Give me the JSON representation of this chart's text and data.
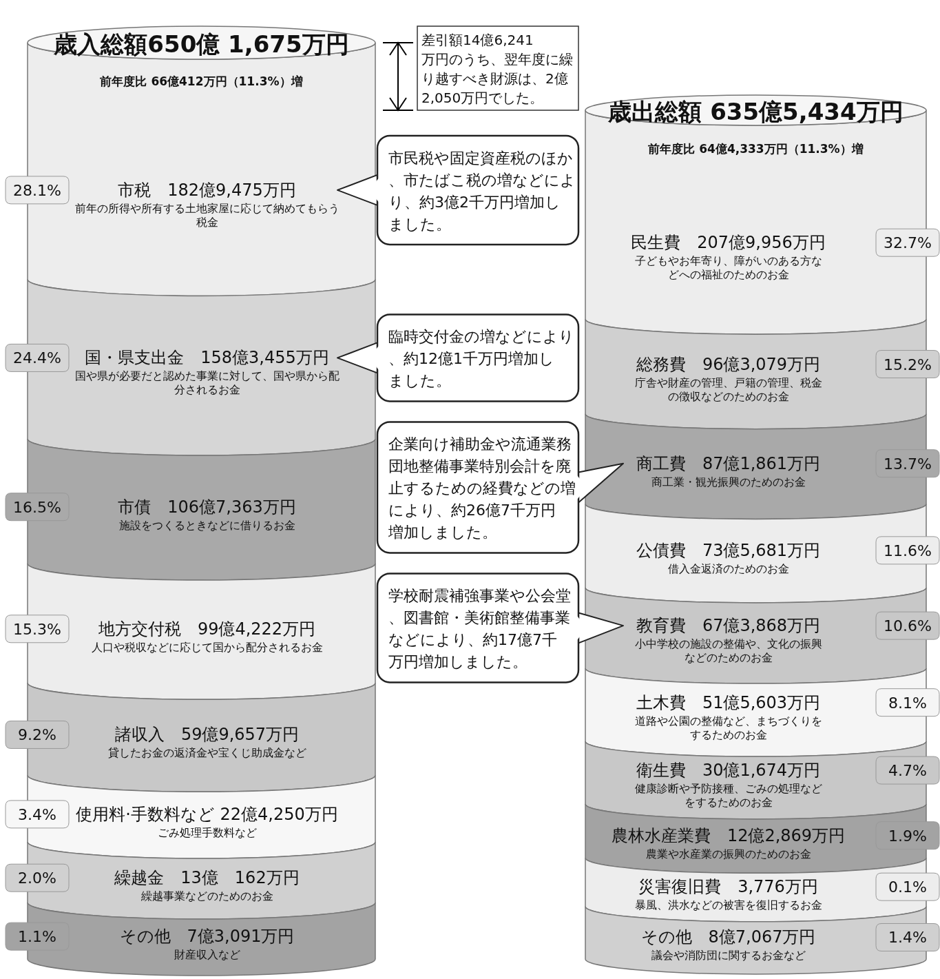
{
  "chart_data": [
    {
      "type": "other",
      "title": "歳入総額650億 1,675万円",
      "subtitle": "前年度比 66億412万円（11.3%）増",
      "categories": [
        "市税　182億9,475万円",
        "国・県支出金　158億3,455万円",
        "市債　106億7,363万円",
        "地方交付税　99億4,222万円",
        "諸収入　59億9,657万円",
        "使用料·手数料など 22億4,250万円",
        "繰越金　13億　162万円",
        "その他　7億3,091万円"
      ],
      "values": [
        28.1,
        24.4,
        16.5,
        15.3,
        9.2,
        3.4,
        2.0,
        1.1
      ],
      "value_labels": [
        "28.1%",
        "24.4%",
        "16.5%",
        "15.3%",
        "9.2%",
        "3.4%",
        "2.0%",
        "1.1%"
      ],
      "colors": [
        "#ededed",
        "#d6d6d6",
        "#a9a9a9",
        "#ededed",
        "#c8c8c8",
        "#f7f7f7",
        "#d0d0d0",
        "#a3a3a3"
      ],
      "annotations": [
        "前年の所得や所有する土地家屋に応じて納めてもらう税金",
        "国や県が必要だと認めた事業に対して、国や県から配分されるお金",
        "施設をつくるときなどに借りるお金",
        "人口や税収などに応じて国から配分されるお金",
        "貸したお金の返済金や宝くじ助成金など",
        "ごみ処理手数料など",
        "繰越事業などのためのお金",
        "財産収入など",
        {
          "text": "市民税や固定資産税のほか、市たばこ税の増などにより、約3億2千万円増加しました。",
          "x": "市税　182億9,475万円"
        },
        {
          "text": "臨時交付金の増などにより、約12億1千万円増加しました。",
          "x": "国・県支出金　158億3,455万円"
        },
        "差引額14億6,241万円のうち、翌年度に繰り越すべき財源は、2億2,050万円でした。"
      ]
    },
    {
      "type": "other",
      "title": "歳出総額 635億5,434万円",
      "subtitle": "前年度比 64億4,333万円（11.3%）増",
      "categories": [
        "民生費　207億9,956万円",
        "総務費　96億3,079万円",
        "商工費　87億1,861万円",
        "公債費　73億5,681万円",
        "教育費　67億3,868万円",
        "土木費　51億5,603万円",
        "衛生費　30億1,674万円",
        "農林水産業費　12億2,869万円",
        "災害復旧費　3,776万円",
        "その他　8億7,067万円"
      ],
      "values": [
        32.7,
        15.2,
        13.7,
        11.6,
        10.6,
        8.1,
        4.7,
        1.9,
        0.1,
        1.4
      ],
      "value_labels": [
        "32.7%",
        "15.2%",
        "13.7%",
        "11.6%",
        "10.6%",
        "8.1%",
        "4.7%",
        "1.9%",
        "0.1%",
        "1.4%"
      ],
      "colors": [
        "#ededed",
        "#d0d0d0",
        "#a9a9a9",
        "#ededed",
        "#c8c8c8",
        "#f5f5f5",
        "#c8c8c8",
        "#a3a3a3",
        "#ededed",
        "#d0d0d0"
      ],
      "annotations": [
        "子どもやお年寄り、障がいのある方などへの福祉のためのお金",
        "庁舎や財産の管理、戸籍の管理、税金の徴収などのためのお金",
        "商工業・観光振興のためのお金",
        "借入金返済のためのお金",
        "小中学校の施設の整備や、文化の振興などのためのお金",
        "道路や公園の整備など、まちづくりをするためのお金",
        "健康診断や予防接種、ごみの処理などをするためのお金",
        "農業や水産業の振興のためのお金",
        "暴風、洪水などの被害を復旧するお金",
        "議会や消防団に関するお金など",
        {
          "text": "企業向け補助金や流通業務団地整備事業特別会計を廃止するための経費などの増により、約26億7千万円増加しました。",
          "x": "商工費　87億1,861万円"
        },
        {
          "text": "学校耐震補強事業や公会堂、図書館・美術館整備事業などにより、約17億7千万円増加しました。",
          "x": "教育費　67億3,868万円"
        }
      ]
    }
  ]
}
